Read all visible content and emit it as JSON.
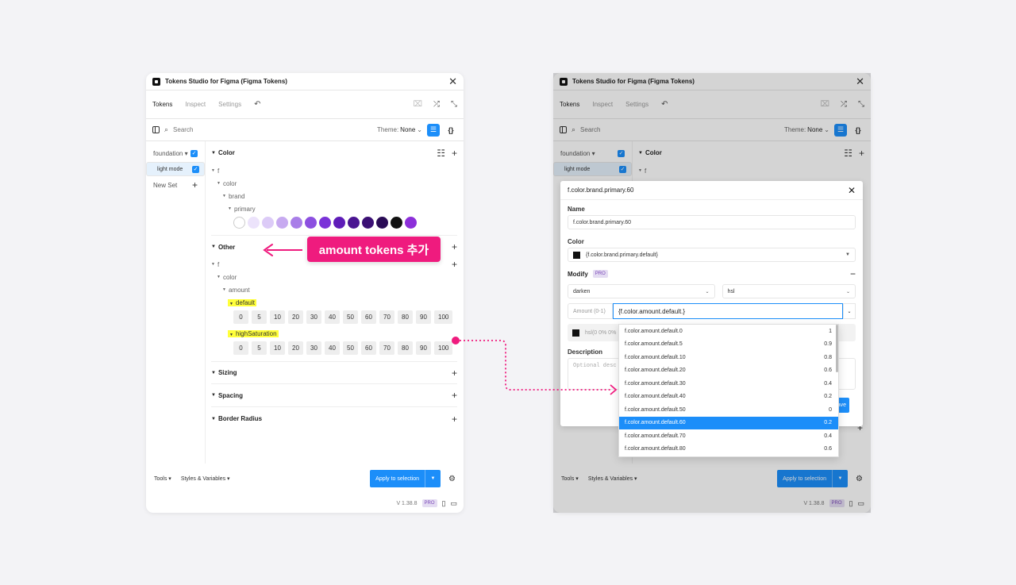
{
  "app_title": "Tokens Studio for Figma (Figma Tokens)",
  "tabs": [
    "Tokens",
    "Inspect",
    "Settings"
  ],
  "search_placeholder": "Search",
  "theme": {
    "label": "Theme:",
    "value": "None"
  },
  "sets": [
    {
      "label": "foundation ▾",
      "checked": true
    },
    {
      "label": "light mode",
      "checked": true,
      "selected": true
    },
    {
      "label": "New Set"
    }
  ],
  "groups": {
    "color": "Color",
    "other": "Other",
    "sizing": "Sizing",
    "spacing": "Spacing",
    "border_radius": "Border Radius"
  },
  "tree": {
    "f": "f",
    "color": "color",
    "brand": "brand",
    "primary": "primary",
    "amount": "amount",
    "default": "default",
    "high_saturation": "highSaturation"
  },
  "primary_swatches": [
    "#ffffff",
    "#ece3fb",
    "#dccbf7",
    "#c7aaf0",
    "#a97ee8",
    "#8c4fe0",
    "#7a32d8",
    "#5e1cb8",
    "#4a1491",
    "#3b1074",
    "#2a0b55",
    "#111111",
    "#8c2fd9"
  ],
  "amount_values": [
    "0",
    "5",
    "10",
    "20",
    "30",
    "40",
    "50",
    "60",
    "70",
    "80",
    "90",
    "100"
  ],
  "footer": {
    "tools": "Tools ▾",
    "styles": "Styles & Variables ▾",
    "apply": "Apply to selection",
    "version": "V 1.38.8",
    "pro": "PRO"
  },
  "callout": "amount tokens 추가",
  "modal": {
    "title": "f.color.brand.primary.60",
    "name_label": "Name",
    "name_value": "f.color.brand.primary.60",
    "color_label": "Color",
    "color_value": "{f.color.brand.primary.default}",
    "modify_label": "Modify",
    "modify_type": "darken",
    "color_space": "hsl",
    "amount_label": "Amount (0-1)",
    "amount_value": "{f.color.amount.default.}",
    "preview": "hsl(0 0% 0%",
    "description_label": "Description",
    "description_placeholder": "Optional desc",
    "save": "ave"
  },
  "dropdown_options": [
    {
      "name": "f.color.amount.default.0",
      "value": "1"
    },
    {
      "name": "f.color.amount.default.5",
      "value": "0.9"
    },
    {
      "name": "f.color.amount.default.10",
      "value": "0.8"
    },
    {
      "name": "f.color.amount.default.20",
      "value": "0.6"
    },
    {
      "name": "f.color.amount.default.30",
      "value": "0.4"
    },
    {
      "name": "f.color.amount.default.40",
      "value": "0.2"
    },
    {
      "name": "f.color.amount.default.50",
      "value": "0"
    },
    {
      "name": "f.color.amount.default.60",
      "value": "0.2",
      "selected": true
    },
    {
      "name": "f.color.amount.default.70",
      "value": "0.4"
    },
    {
      "name": "f.color.amount.default.80",
      "value": "0.6"
    }
  ],
  "colors": {
    "accent": "#1c8ef9",
    "callout": "#ef1b7e",
    "highlight": "#ffff3a"
  }
}
